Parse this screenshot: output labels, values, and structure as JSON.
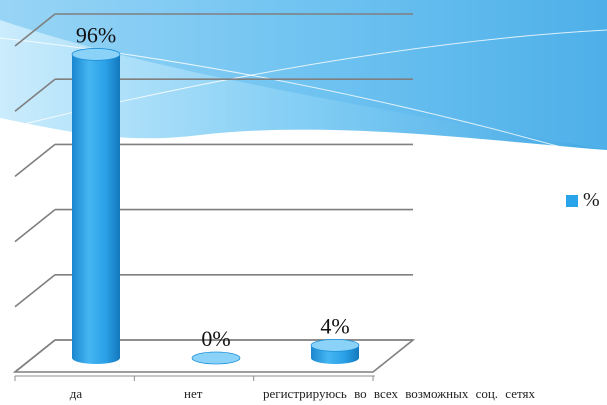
{
  "chart_data": {
    "type": "bar",
    "style": "3d-cylinder",
    "categories": [
      "да",
      "нет",
      "регистрируюсь во всех возможных соц. сетях"
    ],
    "series": [
      {
        "name": "%",
        "values": [
          96,
          0,
          4
        ],
        "data_labels": [
          "96%",
          "0%",
          "4%"
        ]
      }
    ],
    "ylim": [
      0,
      100
    ],
    "y_tick_labels": [],
    "grid": true,
    "legend": "right",
    "colors": {
      "bar": "#29a3ea",
      "bar_top": "#8ad2f8",
      "grid": "#7f7f7f",
      "banner_light": "#b8e4fa",
      "banner_mid": "#6cc6f3",
      "banner_dark": "#2f9ee0"
    }
  }
}
